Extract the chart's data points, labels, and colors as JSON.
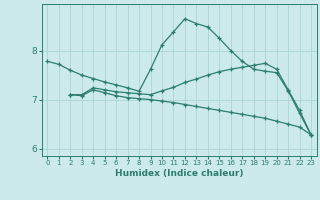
{
  "xlabel": "Humidex (Indice chaleur)",
  "ylabel": "",
  "background_color": "#cceaea",
  "grid_color": "#aad4d4",
  "line_color": "#2d7d6e",
  "xlim": [
    -0.5,
    23.5
  ],
  "ylim": [
    5.85,
    8.95
  ],
  "yticks": [
    6,
    7,
    8
  ],
  "xticks": [
    0,
    1,
    2,
    3,
    4,
    5,
    6,
    7,
    8,
    9,
    10,
    11,
    12,
    13,
    14,
    15,
    16,
    17,
    18,
    19,
    20,
    21,
    22,
    23
  ],
  "line1_x": [
    0,
    1,
    2,
    3,
    4,
    5,
    6,
    7,
    8,
    9,
    10,
    11,
    12,
    13,
    14,
    15,
    16,
    17,
    18,
    19,
    20,
    21,
    22,
    23
  ],
  "line1_y": [
    7.78,
    7.72,
    7.6,
    7.5,
    7.43,
    7.36,
    7.3,
    7.24,
    7.17,
    7.62,
    8.12,
    8.38,
    8.65,
    8.55,
    8.48,
    8.25,
    8.0,
    7.78,
    7.62,
    7.58,
    7.55,
    7.18,
    6.72,
    6.28
  ],
  "line2_x": [
    2,
    3,
    4,
    5,
    6,
    7,
    8,
    9,
    10,
    11,
    12,
    13,
    14,
    15,
    16,
    17,
    18,
    19,
    20,
    21,
    22,
    23
  ],
  "line2_y": [
    7.1,
    7.1,
    7.24,
    7.2,
    7.16,
    7.14,
    7.12,
    7.1,
    7.18,
    7.25,
    7.35,
    7.42,
    7.5,
    7.57,
    7.62,
    7.66,
    7.7,
    7.74,
    7.62,
    7.2,
    6.78,
    6.28
  ],
  "line3_x": [
    2,
    3,
    4,
    5,
    6,
    7,
    8,
    9,
    10,
    11,
    12,
    13,
    14,
    15,
    16,
    17,
    18,
    19,
    20,
    21,
    22,
    23
  ],
  "line3_y": [
    7.1,
    7.08,
    7.2,
    7.14,
    7.08,
    7.04,
    7.02,
    7.0,
    6.97,
    6.94,
    6.9,
    6.86,
    6.82,
    6.78,
    6.74,
    6.7,
    6.66,
    6.62,
    6.56,
    6.5,
    6.44,
    6.28
  ]
}
